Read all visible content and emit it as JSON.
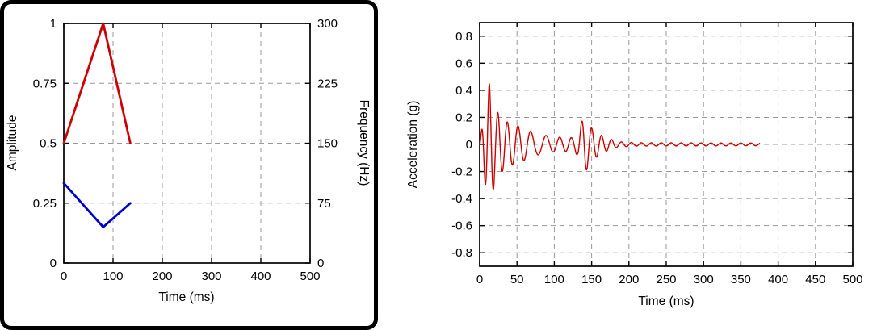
{
  "figure": {
    "background": "#ffffff",
    "left_frame_color": "#000000"
  },
  "colors": {
    "red": "#cc0000",
    "blue": "#0000cc",
    "grid": "#999999",
    "axis": "#000000"
  },
  "chart_data": [
    {
      "id": "sweep-profile",
      "type": "line",
      "title": "",
      "xlabel": "Time (ms)",
      "ylabel_left": "Amplitude",
      "ylabel_right": "Frequency (Hz)",
      "xlim": [
        0,
        500
      ],
      "xticks": [
        0,
        100,
        200,
        300,
        400,
        500
      ],
      "ylim_left": [
        0,
        1
      ],
      "yticks_left": [
        0,
        0.25,
        0.5,
        0.75,
        1
      ],
      "ylim_right": [
        0,
        300
      ],
      "yticks_right": [
        0,
        75,
        150,
        225,
        300
      ],
      "grid": true,
      "legend": "none",
      "series": [
        {
          "name": "amplitude",
          "axis": "left",
          "color": "#cc0000",
          "width": 2.8,
          "x": [
            0,
            80,
            135
          ],
          "y": [
            0.5,
            1.0,
            0.5
          ]
        },
        {
          "name": "frequency",
          "axis": "right",
          "color": "#0000cc",
          "width": 2.8,
          "x": [
            0,
            80,
            135
          ],
          "y": [
            100,
            45,
            75
          ]
        }
      ]
    },
    {
      "id": "acceleration-response",
      "type": "line",
      "title": "",
      "xlabel": "Time (ms)",
      "ylabel": "Acceleration (g)",
      "xlim": [
        0,
        500
      ],
      "xticks": [
        0,
        50,
        100,
        150,
        200,
        250,
        300,
        350,
        400,
        450,
        500
      ],
      "ylim": [
        -0.9,
        0.9
      ],
      "yticks": [
        -0.8,
        -0.6,
        -0.4,
        -0.2,
        0,
        0.2,
        0.4,
        0.6,
        0.8
      ],
      "grid": true,
      "legend": "none",
      "series": [
        {
          "name": "acceleration",
          "axis": "left",
          "color": "#cc0000",
          "width": 1.4,
          "signal": {
            "kind": "chirp",
            "end_ms": 375,
            "freq_hz": {
              "t": [
                0,
                80,
                135,
                375
              ],
              "f": [
                100,
                45,
                75,
                75
              ]
            },
            "envelope": {
              "t": [
                0,
                6,
                13,
                22,
                35,
                55,
                75,
                100,
                125,
                131,
                140,
                150,
                165,
                185,
                210,
                375
              ],
              "a": [
                0,
                0.25,
                0.45,
                0.25,
                0.17,
                0.13,
                0.08,
                0.055,
                0.05,
                0.08,
                0.22,
                0.12,
                0.06,
                0.02,
                0.012,
                0.01
              ]
            }
          }
        }
      ]
    }
  ]
}
